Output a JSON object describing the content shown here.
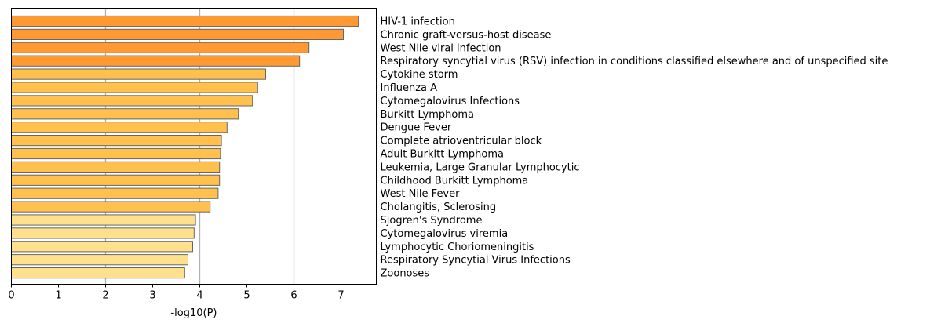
{
  "chart_data": {
    "type": "bar",
    "orientation": "horizontal",
    "title": "",
    "xlabel": "-log10(P)",
    "ylabel": "",
    "xlim": [
      0,
      7.75
    ],
    "xticks": [
      "0",
      "1",
      "2",
      "3",
      "4",
      "5",
      "6",
      "7"
    ],
    "grid": "vertical lines at 2, 4, 6",
    "categories": [
      "HIV-1 infection",
      "Chronic graft-versus-host disease",
      "West Nile viral infection",
      "Respiratory syncytial virus (RSV) infection in conditions classified elsewhere and of unspecified site",
      "Cytokine storm",
      "Influenza A",
      "Cytomegalovirus Infections",
      "Burkitt Lymphoma",
      "Dengue Fever",
      "Complete atrioventricular block",
      "Adult Burkitt Lymphoma",
      "Leukemia, Large Granular Lymphocytic",
      "Childhood Burkitt Lymphoma",
      "West Nile Fever",
      "Cholangitis, Sclerosing",
      "Sjogren's Syndrome",
      "Cytomegalovirus viremia",
      "Lymphocytic Choriomeningitis",
      "Respiratory Syncytial Virus Infections",
      "Zoonoses"
    ],
    "values": [
      7.37,
      7.05,
      6.32,
      6.12,
      5.4,
      5.23,
      5.12,
      4.82,
      4.58,
      4.46,
      4.44,
      4.42,
      4.42,
      4.39,
      4.22,
      3.91,
      3.88,
      3.85,
      3.75,
      3.68
    ],
    "colors": [
      "#ff9933",
      "#ff9933",
      "#ff9933",
      "#ff9933",
      "#ffc04d",
      "#ffc04d",
      "#ffc04d",
      "#ffc04d",
      "#ffc04d",
      "#ffc04d",
      "#ffc04d",
      "#ffc04d",
      "#ffc04d",
      "#ffc04d",
      "#ffc04d",
      "#ffe08c",
      "#ffe08c",
      "#ffe08c",
      "#ffe08c",
      "#ffe08c"
    ],
    "bar_edge_color": "#666666",
    "grid_color": "#b0b0b0"
  }
}
